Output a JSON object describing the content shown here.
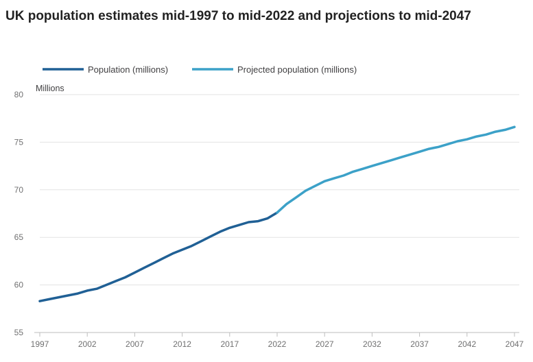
{
  "chart_data": {
    "type": "line",
    "title": "UK population estimates mid-1997 to mid-2022 and projections to mid-2047",
    "ylabel": "Millions",
    "xlabel": "",
    "xlim": [
      1997,
      2047
    ],
    "ylim": [
      55,
      80
    ],
    "yticks": [
      55,
      60,
      65,
      70,
      75,
      80
    ],
    "xticks": [
      1997,
      2002,
      2007,
      2012,
      2017,
      2022,
      2027,
      2032,
      2037,
      2042,
      2047
    ],
    "grid": "horizontal",
    "legend_position": "top-left",
    "series": [
      {
        "name": "Population (millions)",
        "color": "#206095",
        "x": [
          1997,
          1998,
          1999,
          2000,
          2001,
          2002,
          2003,
          2004,
          2005,
          2006,
          2007,
          2008,
          2009,
          2010,
          2011,
          2012,
          2013,
          2014,
          2015,
          2016,
          2017,
          2018,
          2019,
          2020,
          2021,
          2022
        ],
        "y": [
          58.3,
          58.5,
          58.7,
          58.9,
          59.1,
          59.4,
          59.6,
          60.0,
          60.4,
          60.8,
          61.3,
          61.8,
          62.3,
          62.8,
          63.3,
          63.7,
          64.1,
          64.6,
          65.1,
          65.6,
          66.0,
          66.3,
          66.6,
          66.7,
          67.0,
          67.6
        ]
      },
      {
        "name": "Projected population (millions)",
        "color": "#3ca1c8",
        "x": [
          2022,
          2023,
          2024,
          2025,
          2026,
          2027,
          2028,
          2029,
          2030,
          2031,
          2032,
          2033,
          2034,
          2035,
          2036,
          2037,
          2038,
          2039,
          2040,
          2041,
          2042,
          2043,
          2044,
          2045,
          2046,
          2047
        ],
        "y": [
          67.6,
          68.5,
          69.2,
          69.9,
          70.4,
          70.9,
          71.2,
          71.5,
          71.9,
          72.2,
          72.5,
          72.8,
          73.1,
          73.4,
          73.7,
          74.0,
          74.3,
          74.5,
          74.8,
          75.1,
          75.3,
          75.6,
          75.8,
          76.1,
          76.3,
          76.6
        ]
      }
    ]
  }
}
